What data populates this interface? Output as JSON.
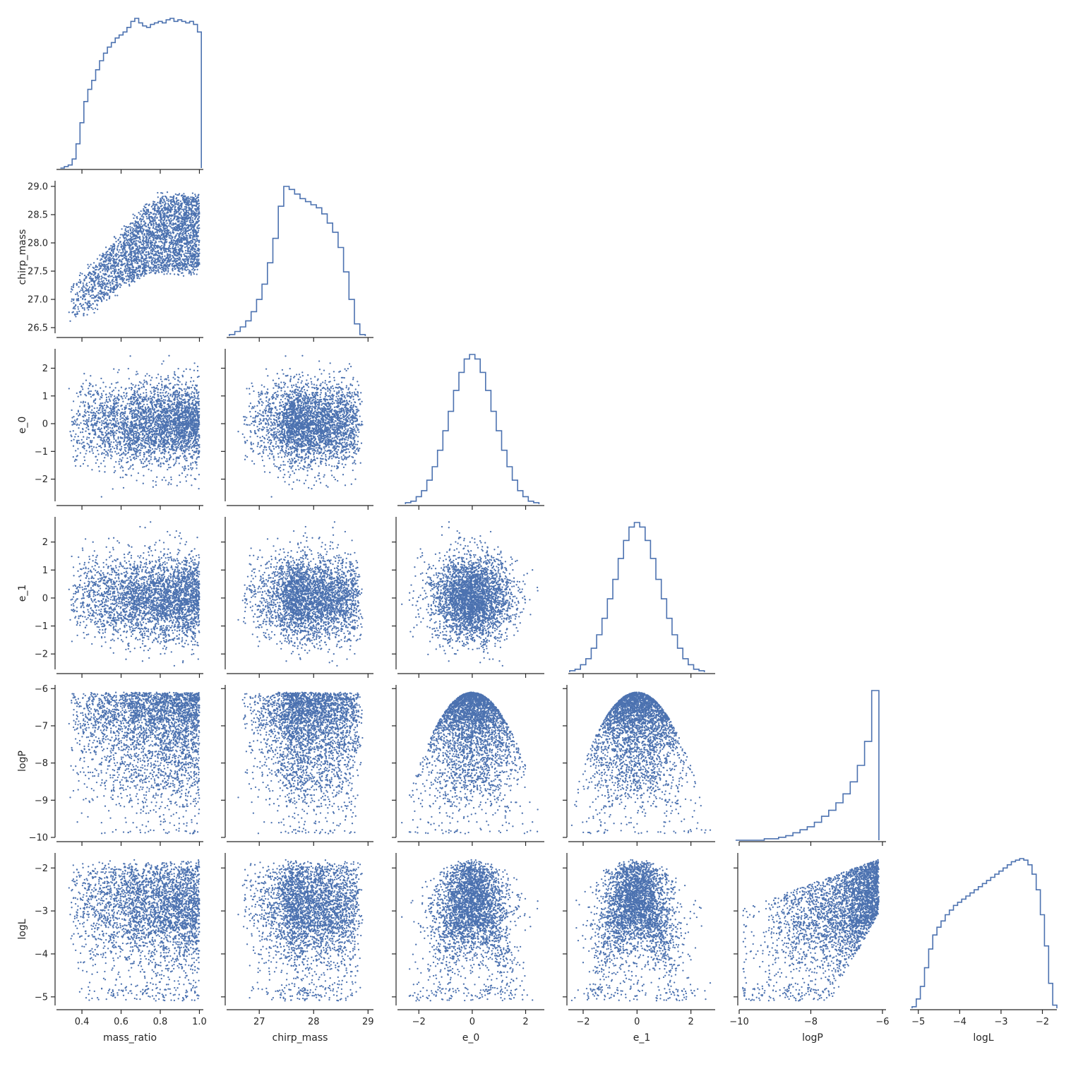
{
  "chart_data": {
    "type": "scatter",
    "layout": "corner-pairplot",
    "color": "#4c72b0",
    "variables": [
      "mass_ratio",
      "chirp_mass",
      "e_0",
      "e_1",
      "logP",
      "logL"
    ],
    "axes": {
      "mass_ratio": {
        "label": "mass_ratio",
        "range": [
          0.27,
          1.02
        ],
        "ticks": [
          0.4,
          0.6,
          0.8,
          1.0
        ],
        "tick_labels": [
          "0.4",
          "0.6",
          "0.8",
          "1.0"
        ]
      },
      "chirp_mass": {
        "label": "chirp_mass",
        "range": [
          26.4,
          29.1
        ],
        "ticks": [
          27,
          28,
          29
        ],
        "tick_labels": [
          "27",
          "28",
          "29"
        ],
        "y_ticks": [
          26.5,
          27.0,
          27.5,
          28.0,
          28.5,
          29.0
        ],
        "y_tick_labels": [
          "26.5",
          "27.0",
          "27.5",
          "28.0",
          "28.5",
          "29.0"
        ]
      },
      "e_0": {
        "label": "e_0",
        "range": [
          -2.8,
          2.7
        ],
        "ticks": [
          -2,
          0,
          2
        ],
        "tick_labels": [
          "−2",
          "0",
          "2"
        ],
        "y_ticks": [
          -2,
          -1,
          0,
          1,
          2
        ],
        "y_tick_labels": [
          "−2",
          "−1",
          "0",
          "1",
          "2"
        ]
      },
      "e_1": {
        "label": "e_1",
        "range": [
          -2.55,
          2.9
        ],
        "ticks": [
          -2,
          0,
          2
        ],
        "tick_labels": [
          "−2",
          "0",
          "2"
        ],
        "y_ticks": [
          -2,
          -1,
          0,
          1,
          2
        ],
        "y_tick_labels": [
          "−2",
          "−1",
          "0",
          "1",
          "2"
        ]
      },
      "logP": {
        "label": "logP",
        "range": [
          -10.0,
          -5.9
        ],
        "ticks": [
          -10,
          -8,
          -6
        ],
        "tick_labels": [
          "−10",
          "−8",
          "−6"
        ],
        "y_ticks": [
          -10,
          -9,
          -8,
          -7,
          -6
        ],
        "y_tick_labels": [
          "−10",
          "−9",
          "−8",
          "−7",
          "−6"
        ]
      },
      "logL": {
        "label": "logL",
        "range": [
          -5.2,
          -1.65
        ],
        "ticks": [
          -5,
          -4,
          -3,
          -2
        ],
        "tick_labels": [
          "−5",
          "−4",
          "−3",
          "−2"
        ],
        "y_ticks": [
          -5,
          -4,
          -3,
          -2
        ],
        "y_tick_labels": [
          "−5",
          "−4",
          "−3",
          "−2"
        ]
      }
    },
    "histograms": {
      "mass_ratio": {
        "x": [
          0.3,
          0.32,
          0.34,
          0.36,
          0.38,
          0.4,
          0.42,
          0.44,
          0.46,
          0.48,
          0.5,
          0.52,
          0.54,
          0.56,
          0.58,
          0.6,
          0.62,
          0.64,
          0.66,
          0.68,
          0.7,
          0.72,
          0.74,
          0.76,
          0.78,
          0.8,
          0.82,
          0.84,
          0.86,
          0.88,
          0.9,
          0.92,
          0.94,
          0.96,
          0.98,
          1.0
        ],
        "y": [
          0,
          1,
          2,
          6,
          16,
          30,
          44,
          52,
          58,
          65,
          71,
          76,
          80,
          83,
          86,
          88,
          90,
          93,
          97,
          99,
          96,
          94,
          93,
          95,
          96,
          97,
          96,
          98,
          99,
          97,
          98,
          97,
          96,
          97,
          95,
          90
        ]
      },
      "chirp_mass": {
        "x": [
          26.5,
          26.6,
          26.7,
          26.8,
          26.9,
          27.0,
          27.1,
          27.2,
          27.3,
          27.4,
          27.5,
          27.6,
          27.7,
          27.8,
          27.9,
          28.0,
          28.1,
          28.2,
          28.3,
          28.4,
          28.5,
          28.6,
          28.7,
          28.8,
          28.9
        ],
        "y": [
          1,
          3,
          6,
          10,
          16,
          24,
          34,
          48,
          64,
          85,
          98,
          96,
          93,
          90,
          88,
          86,
          84,
          80,
          74,
          68,
          58,
          42,
          24,
          8,
          1
        ]
      },
      "e_0": {
        "x": [
          -2.4,
          -2.2,
          -2.0,
          -1.8,
          -1.6,
          -1.4,
          -1.2,
          -1.0,
          -0.8,
          -0.6,
          -0.4,
          -0.2,
          0.0,
          0.2,
          0.4,
          0.6,
          0.8,
          1.0,
          1.2,
          1.4,
          1.6,
          1.8,
          2.0,
          2.2,
          2.4
        ],
        "y": [
          1,
          2,
          5,
          9,
          16,
          25,
          36,
          49,
          62,
          76,
          88,
          97,
          100,
          97,
          88,
          76,
          62,
          49,
          36,
          25,
          16,
          9,
          5,
          2,
          1
        ]
      },
      "e_1": {
        "x": [
          -2.4,
          -2.2,
          -2.0,
          -1.8,
          -1.6,
          -1.4,
          -1.2,
          -1.0,
          -0.8,
          -0.6,
          -0.4,
          -0.2,
          0.0,
          0.2,
          0.4,
          0.6,
          0.8,
          1.0,
          1.2,
          1.4,
          1.6,
          1.8,
          2.0,
          2.2,
          2.4
        ],
        "y": [
          1,
          2,
          5,
          9,
          16,
          25,
          36,
          49,
          62,
          76,
          88,
          97,
          100,
          97,
          88,
          76,
          62,
          49,
          36,
          25,
          16,
          9,
          5,
          2,
          1
        ]
      },
      "logP": {
        "x": [
          -10.0,
          -9.8,
          -9.6,
          -9.4,
          -9.2,
          -9.0,
          -8.8,
          -8.6,
          -8.4,
          -8.2,
          -8.0,
          -7.8,
          -7.6,
          -7.4,
          -7.2,
          -7.0,
          -6.8,
          -6.6,
          -6.4,
          -6.2
        ],
        "y": [
          0,
          0,
          0,
          0,
          1,
          1,
          2,
          3,
          5,
          7,
          9,
          12,
          16,
          20,
          25,
          31,
          39,
          50,
          66,
          100
        ]
      },
      "logL": {
        "x": [
          -5.1,
          -5.0,
          -4.9,
          -4.8,
          -4.7,
          -4.6,
          -4.5,
          -4.4,
          -4.3,
          -4.2,
          -4.1,
          -4.0,
          -3.9,
          -3.8,
          -3.7,
          -3.6,
          -3.5,
          -3.4,
          -3.3,
          -3.2,
          -3.1,
          -3.0,
          -2.9,
          -2.8,
          -2.7,
          -2.6,
          -2.5,
          -2.4,
          -2.3,
          -2.2,
          -2.1,
          -2.0,
          -1.9,
          -1.8,
          -1.7
        ],
        "y": [
          1,
          6,
          14,
          26,
          38,
          47,
          52,
          56,
          60,
          63,
          66,
          68,
          70,
          72,
          74,
          76,
          78,
          80,
          82,
          84,
          86,
          88,
          90,
          92,
          94,
          95,
          96,
          95,
          92,
          86,
          76,
          60,
          40,
          16,
          2
        ]
      }
    }
  }
}
